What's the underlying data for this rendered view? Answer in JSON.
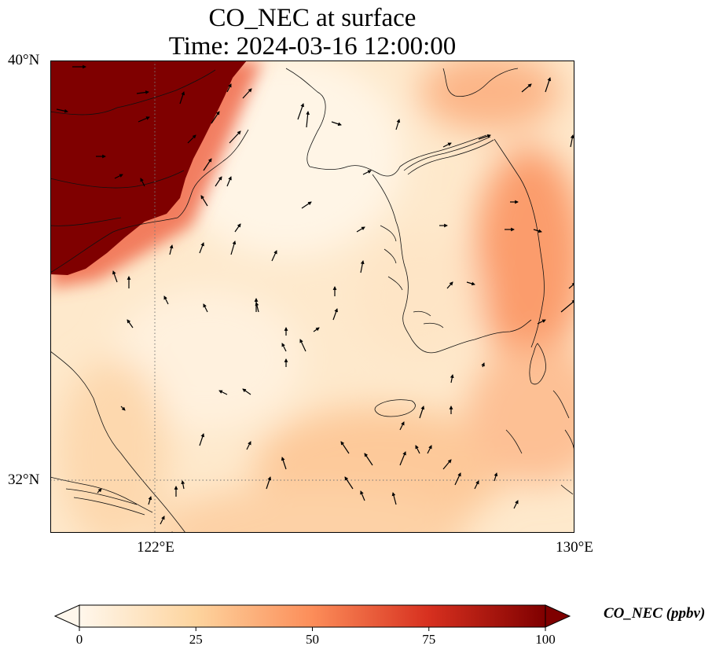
{
  "title": {
    "line1": "CO_NEC at surface",
    "line2": "Time: 2024-03-16 12:00:00"
  },
  "map": {
    "variable": "CO_NEC",
    "level": "surface",
    "time": "2024-03-16 12:00:00",
    "lon_range": [
      119,
      130
    ],
    "lat_range": [
      31,
      40
    ],
    "lat_ticks": [
      {
        "value": 40,
        "label": "40°N"
      },
      {
        "value": 32,
        "label": "32°N"
      }
    ],
    "lon_ticks": [
      {
        "value": 122,
        "label": "122°E"
      },
      {
        "value": 130,
        "label": "130°E"
      }
    ],
    "gridlines": "dotted",
    "features": [
      "coastlines",
      "wind-vectors",
      "concentration-field"
    ],
    "high_concentration_region": "northwest (Shandong / Bohai area)"
  },
  "colorbar": {
    "label": "CO_NEC (ppbv)",
    "colormap": "OrRd",
    "min": 0,
    "max": 100,
    "extend": "both",
    "ticks": [
      {
        "value": 0,
        "label": "0"
      },
      {
        "value": 25,
        "label": "25"
      },
      {
        "value": 50,
        "label": "50"
      },
      {
        "value": 75,
        "label": "75"
      },
      {
        "value": 100,
        "label": "100"
      }
    ],
    "colors": [
      "#fff7ec",
      "#fdd49e",
      "#fc8d59",
      "#d7301f",
      "#7f0000"
    ]
  }
}
